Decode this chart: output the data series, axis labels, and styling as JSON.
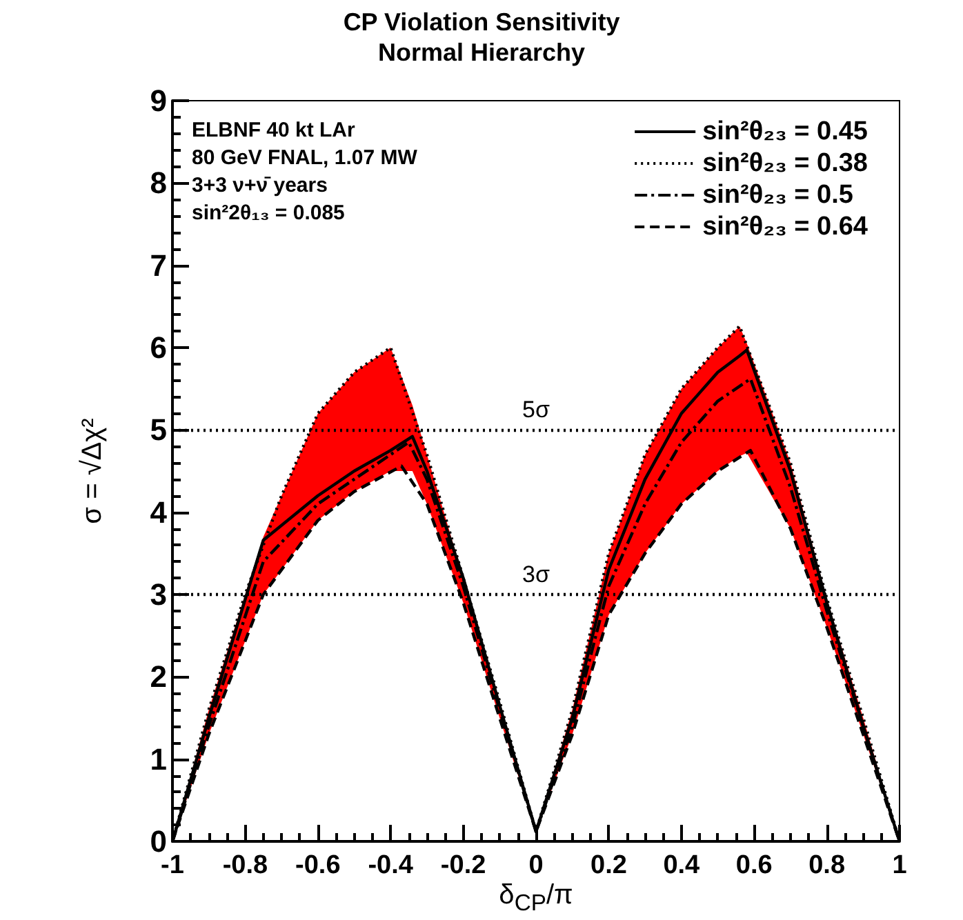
{
  "chart_data": {
    "type": "line",
    "title": "CP Violation Sensitivity",
    "subtitle": "Normal Hierarchy",
    "xlabel": "δ$_{CP}$/π",
    "ylabel": "σ = √Δχ²",
    "annotations": [
      "ELBNF 40 kt LAr",
      "80 GeV FNAL, 1.07 MW",
      "3+3 ν+ν̄ years",
      "sin²2θ₁₃ = 0.085"
    ],
    "series": [
      {
        "name": "sin²θ₂₃ = 0.45",
        "color": "#000000",
        "line_style": "solid",
        "x": [
          -1,
          -0.9,
          -0.75,
          -0.6,
          -0.5,
          -0.4,
          -0.34,
          -0.3,
          -0.2,
          -0.1,
          0,
          0.1,
          0.2,
          0.3,
          0.4,
          0.5,
          0.56,
          0.58,
          0.7,
          0.8,
          0.9,
          1
        ],
        "values": [
          0,
          1.5,
          3.66,
          4.2,
          4.5,
          4.75,
          4.92,
          4.5,
          3.2,
          1.65,
          0.12,
          1.5,
          3.3,
          4.4,
          5.2,
          5.7,
          5.9,
          5.97,
          4.5,
          2.9,
          1.4,
          0
        ],
        "lower": [
          0,
          1.3,
          3.0,
          3.9,
          4.25,
          4.5,
          4.5,
          4.1,
          2.9,
          1.5,
          0.12,
          1.3,
          2.75,
          3.5,
          4.1,
          4.5,
          4.68,
          4.72,
          3.8,
          2.6,
          1.3,
          0
        ],
        "upper": [
          0,
          1.6,
          3.7,
          5.2,
          5.7,
          6.0,
          5.3,
          4.7,
          3.2,
          1.7,
          0.12,
          1.6,
          3.5,
          4.7,
          5.5,
          6.0,
          6.26,
          6.05,
          4.6,
          2.95,
          1.5,
          0
        ]
      },
      {
        "name": "sin²θ₂₃ = 0.38",
        "color": "#000000",
        "line_style": "dotted",
        "x": [
          -1,
          -0.9,
          -0.8,
          -0.7,
          -0.6,
          -0.5,
          -0.4,
          -0.3,
          -0.2,
          -0.1,
          0,
          0.1,
          0.2,
          0.3,
          0.4,
          0.5,
          0.56,
          0.7,
          0.8,
          0.9,
          1
        ],
        "values": [
          0,
          1.6,
          3.0,
          4.2,
          5.2,
          5.7,
          6.0,
          4.7,
          3.2,
          1.7,
          0.12,
          1.6,
          3.5,
          4.7,
          5.5,
          6.0,
          6.26,
          4.6,
          2.95,
          1.5,
          0
        ]
      },
      {
        "name": "sin²θ₂₃ = 0.5",
        "color": "#000000",
        "line_style": "dashdot",
        "x": [
          -1,
          -0.9,
          -0.75,
          -0.6,
          -0.5,
          -0.35,
          -0.3,
          -0.2,
          -0.1,
          0,
          0.1,
          0.2,
          0.3,
          0.4,
          0.5,
          0.59,
          0.7,
          0.8,
          0.9,
          1
        ],
        "values": [
          0,
          1.4,
          3.4,
          4.1,
          4.4,
          4.85,
          4.4,
          3.1,
          1.6,
          0.12,
          1.4,
          3.1,
          4.1,
          4.85,
          5.35,
          5.62,
          4.3,
          2.8,
          1.4,
          0
        ]
      },
      {
        "name": "sin²θ₂₃ = 0.64",
        "color": "#000000",
        "line_style": "dashed",
        "x": [
          -1,
          -0.9,
          -0.75,
          -0.6,
          -0.5,
          -0.37,
          -0.3,
          -0.2,
          -0.1,
          0,
          0.1,
          0.2,
          0.3,
          0.4,
          0.5,
          0.59,
          0.7,
          0.8,
          0.9,
          1
        ],
        "values": [
          0,
          1.3,
          3.0,
          3.9,
          4.25,
          4.56,
          4.1,
          2.9,
          1.5,
          0.12,
          1.3,
          2.75,
          3.5,
          4.1,
          4.5,
          4.75,
          3.8,
          2.6,
          1.3,
          0
        ]
      }
    ],
    "ref_lines": [
      {
        "axis": "y",
        "value": 5,
        "label": "5σ",
        "line_style": "dotted"
      },
      {
        "axis": "y",
        "value": 3,
        "label": "3σ",
        "line_style": "dotted"
      }
    ],
    "xlim": [
      -1,
      1
    ],
    "xticks": [
      -1,
      -0.8,
      -0.6,
      -0.4,
      -0.2,
      0,
      0.2,
      0.4,
      0.6,
      0.8,
      1
    ],
    "ylim": [
      0,
      9
    ],
    "yticks": [
      0,
      1,
      2,
      3,
      4,
      5,
      6,
      7,
      8,
      9
    ],
    "grid": false,
    "legend": "top right",
    "marker": "none"
  }
}
